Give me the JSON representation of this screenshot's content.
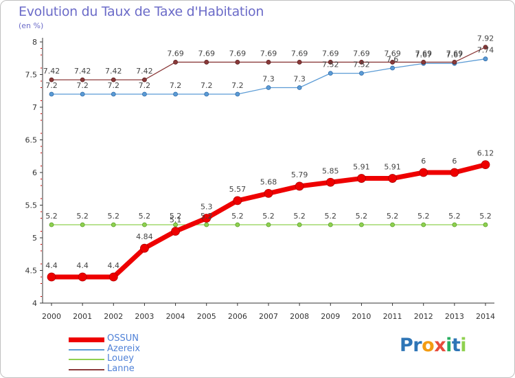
{
  "title": "Evolution du Taux de Taxe d'Habitation",
  "subtitle": "(en %)",
  "chart_data": {
    "type": "line",
    "title": "Evolution du Taux de Taxe d'Habitation",
    "subtitle": "(en %)",
    "x": [
      "2000",
      "2001",
      "2002",
      "2003",
      "2004",
      "2005",
      "2006",
      "2007",
      "2008",
      "2009",
      "2010",
      "2011",
      "2012",
      "2013",
      "2014"
    ],
    "ylim": [
      4,
      8
    ],
    "yticks": [
      "4",
      "4.5",
      "5",
      "5.5",
      "6",
      "6.5",
      "7",
      "7.5",
      "8"
    ],
    "grid": false,
    "legend_position": "bottom-left",
    "series": [
      {
        "name": "OSSUN",
        "color": "#ee0000",
        "values": [
          4.4,
          4.4,
          4.4,
          4.84,
          5.1,
          5.3,
          5.57,
          5.68,
          5.79,
          5.85,
          5.91,
          5.91,
          6,
          6,
          6.12
        ],
        "labels": [
          "4.4",
          "4.4",
          "4.4",
          "4.84",
          "5.1",
          "5.3",
          "5.57",
          "5.68",
          "5.79",
          "5.85",
          "5.91",
          "5.91",
          "6",
          "6",
          "6.12"
        ]
      },
      {
        "name": "Azereix",
        "color": "#5b9bd5",
        "values": [
          7.2,
          7.2,
          7.2,
          7.2,
          7.2,
          7.2,
          7.2,
          7.3,
          7.3,
          7.52,
          7.52,
          7.6,
          7.67,
          7.67,
          7.74
        ],
        "labels": [
          "7.2",
          "7.2",
          "7.2",
          "7.2",
          "7.2",
          "7.2",
          "7.2",
          "7.3",
          "7.3",
          "7.52",
          "7.52",
          "7.6",
          "7.67",
          "7.67",
          "7.74"
        ]
      },
      {
        "name": "Louey",
        "color": "#8fd14f",
        "values": [
          5.2,
          5.2,
          5.2,
          5.2,
          5.2,
          5.2,
          5.2,
          5.2,
          5.2,
          5.2,
          5.2,
          5.2,
          5.2,
          5.2,
          5.2
        ],
        "labels": [
          "5.2",
          "5.2",
          "5.2",
          "5.2",
          "5.2",
          "5.2",
          "5.2",
          "5.2",
          "5.2",
          "5.2",
          "5.2",
          "5.2",
          "5.2",
          "5.2",
          "5.2"
        ]
      },
      {
        "name": "Lanne",
        "color": "#8b3a3a",
        "values": [
          7.42,
          7.42,
          7.42,
          7.42,
          7.69,
          7.69,
          7.69,
          7.69,
          7.69,
          7.69,
          7.69,
          7.69,
          7.69,
          7.69,
          7.92
        ],
        "labels": [
          "7.42",
          "7.42",
          "7.42",
          "7.42",
          "7.69",
          "7.69",
          "7.69",
          "7.69",
          "7.69",
          "7.69",
          "7.69",
          "7.69",
          "7.69",
          "7.69",
          "7.92"
        ]
      }
    ]
  },
  "logo": {
    "text": "Proxiti",
    "letters": [
      {
        "ch": "P",
        "color": "#2e75b6"
      },
      {
        "ch": "r",
        "color": "#2e75b6"
      },
      {
        "ch": "o",
        "color": "#f39c12"
      },
      {
        "ch": "x",
        "color": "#e74c3c"
      },
      {
        "ch": "i",
        "color": "#27ae60"
      },
      {
        "ch": "t",
        "color": "#2e75b6"
      },
      {
        "ch": "i",
        "color": "#8fd14f"
      }
    ]
  }
}
